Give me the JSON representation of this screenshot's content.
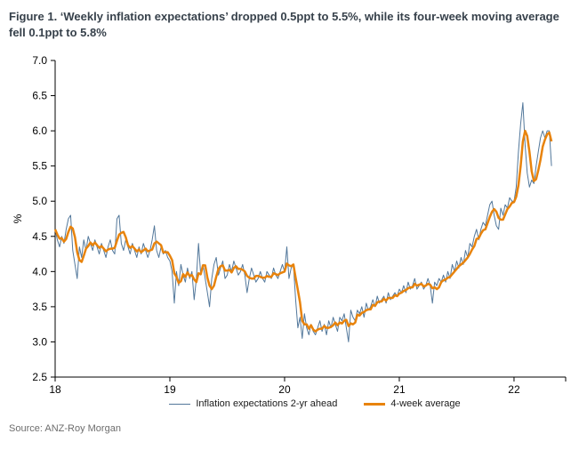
{
  "figure": {
    "title": "Figure 1. ‘Weekly inflation expectations’ dropped 0.5ppt to 5.5%, while its four-week moving average fell 0.1ppt to 5.8%",
    "source": "Source: ANZ-Roy Morgan"
  },
  "chart_data": {
    "type": "line",
    "title": "Figure 1. ‘Weekly inflation expectations’ dropped 0.5ppt to 5.5%, while its four-week moving average fell 0.1ppt to 5.8%",
    "xlabel": "",
    "ylabel": "%",
    "ylim": [
      2.5,
      7.0
    ],
    "xlim": [
      18,
      22.45
    ],
    "x_ticks": [
      18,
      19,
      20,
      21,
      22
    ],
    "y_ticks": [
      2.5,
      3.0,
      3.5,
      4.0,
      4.5,
      5.0,
      5.5,
      6.0,
      6.5,
      7.0
    ],
    "grid": false,
    "legend_position": "bottom",
    "x_start": 18.0,
    "x_step": 0.0192308,
    "axis_color": "#000000",
    "series": [
      {
        "name": "Inflation expectations 2-yr ahead",
        "color": "#53789B",
        "width": 1,
        "values": [
          4.6,
          4.45,
          4.35,
          4.5,
          4.4,
          4.6,
          4.75,
          4.8,
          4.3,
          4.1,
          3.9,
          4.35,
          4.2,
          4.45,
          4.3,
          4.5,
          4.4,
          4.3,
          4.45,
          4.35,
          4.25,
          4.4,
          4.3,
          4.2,
          4.35,
          4.45,
          4.3,
          4.25,
          4.75,
          4.8,
          4.4,
          4.3,
          4.45,
          4.35,
          4.25,
          4.4,
          4.3,
          4.2,
          4.35,
          4.25,
          4.4,
          4.3,
          4.2,
          4.3,
          4.45,
          4.65,
          4.3,
          4.2,
          4.35,
          4.25,
          4.3,
          4.2,
          4.15,
          4.0,
          3.55,
          4.0,
          3.8,
          4.1,
          3.95,
          3.85,
          4.05,
          3.9,
          4.0,
          3.6,
          3.9,
          4.4,
          3.95,
          4.1,
          3.9,
          3.7,
          3.5,
          3.9,
          4.1,
          4.2,
          3.95,
          4.05,
          4.15,
          3.9,
          3.95,
          4.1,
          4.0,
          4.15,
          4.05,
          3.95,
          4.0,
          4.1,
          3.95,
          3.7,
          3.9,
          4.05,
          3.95,
          3.85,
          3.9,
          4.0,
          3.9,
          3.85,
          4.0,
          3.95,
          3.9,
          4.05,
          3.95,
          3.9,
          4.0,
          4.1,
          4.0,
          4.35,
          3.9,
          4.05,
          4.1,
          3.6,
          3.2,
          3.35,
          3.05,
          3.4,
          3.2,
          3.1,
          3.25,
          3.15,
          3.1,
          3.2,
          3.3,
          3.15,
          3.25,
          3.1,
          3.3,
          3.2,
          3.35,
          3.25,
          3.15,
          3.35,
          3.3,
          3.4,
          3.2,
          3.0,
          3.45,
          3.35,
          3.3,
          3.45,
          3.4,
          3.5,
          3.35,
          3.55,
          3.45,
          3.5,
          3.6,
          3.5,
          3.65,
          3.55,
          3.6,
          3.65,
          3.55,
          3.7,
          3.6,
          3.65,
          3.7,
          3.65,
          3.75,
          3.7,
          3.8,
          3.7,
          3.85,
          3.75,
          3.8,
          3.9,
          3.75,
          3.8,
          3.85,
          3.75,
          3.8,
          3.9,
          3.8,
          3.55,
          3.85,
          3.8,
          3.9,
          3.85,
          3.95,
          3.85,
          4.0,
          3.9,
          4.1,
          4.0,
          4.15,
          4.05,
          4.2,
          4.1,
          4.3,
          4.2,
          4.4,
          4.35,
          4.5,
          4.6,
          4.45,
          4.6,
          4.7,
          4.65,
          4.8,
          4.95,
          5.0,
          4.8,
          4.65,
          4.6,
          4.9,
          4.8,
          4.95,
          4.9,
          5.05,
          5.0,
          5.0,
          5.2,
          5.7,
          6.1,
          6.4,
          5.8,
          5.4,
          5.2,
          5.3,
          5.25,
          5.5,
          5.7,
          5.9,
          6.0,
          5.9,
          6.0,
          6.0,
          5.5
        ]
      },
      {
        "name": "4-week average",
        "color": "#E8830C",
        "width": 2.5,
        "derived": "4-week trailing moving average of series 0",
        "latest_value": 5.8
      }
    ]
  }
}
